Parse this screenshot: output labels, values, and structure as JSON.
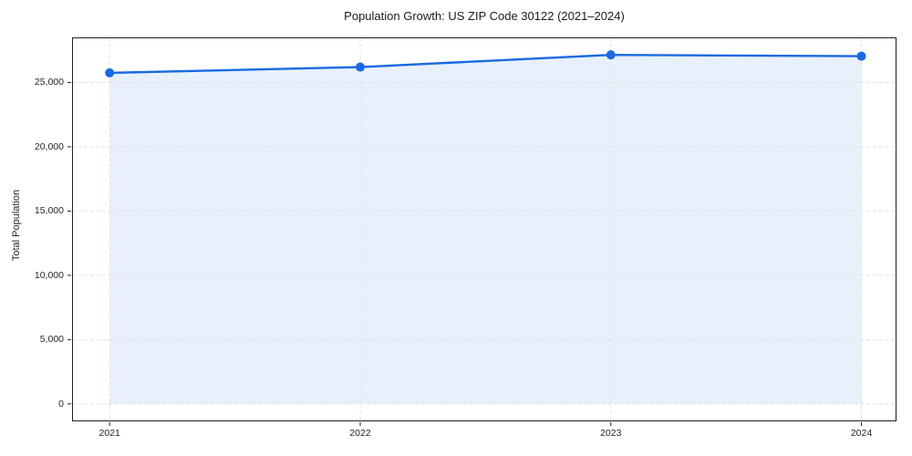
{
  "chart_data": {
    "type": "line",
    "title": "Population Growth: US ZIP Code 30122 (2021–2024)",
    "xlabel": "",
    "ylabel": "Total Population",
    "categories": [
      "2021",
      "2022",
      "2023",
      "2024"
    ],
    "series": [
      {
        "name": "Total Population",
        "values": [
          25750,
          26200,
          27150,
          27050
        ]
      }
    ],
    "values": [
      25750,
      26200,
      27150,
      27050
    ],
    "ytick_values": [
      0,
      5000,
      10000,
      15000,
      20000,
      25000
    ],
    "ytick_labels": [
      "0",
      "5,000",
      "10,000",
      "15,000",
      "20,000",
      "25,000"
    ],
    "ylim": [
      -1360,
      28510
    ],
    "xlim": [
      -0.15,
      3.14
    ],
    "grid": true,
    "grid_style": "dashed",
    "legend": "none",
    "area_fill": true,
    "marker": {
      "shape": "circle",
      "radius": 5
    },
    "colors": {
      "line": "#1a6ae0",
      "fill_opacity": 0.1,
      "grid": "#e2e2e2",
      "spine": "#1f1f1f",
      "text": "#262626"
    }
  }
}
